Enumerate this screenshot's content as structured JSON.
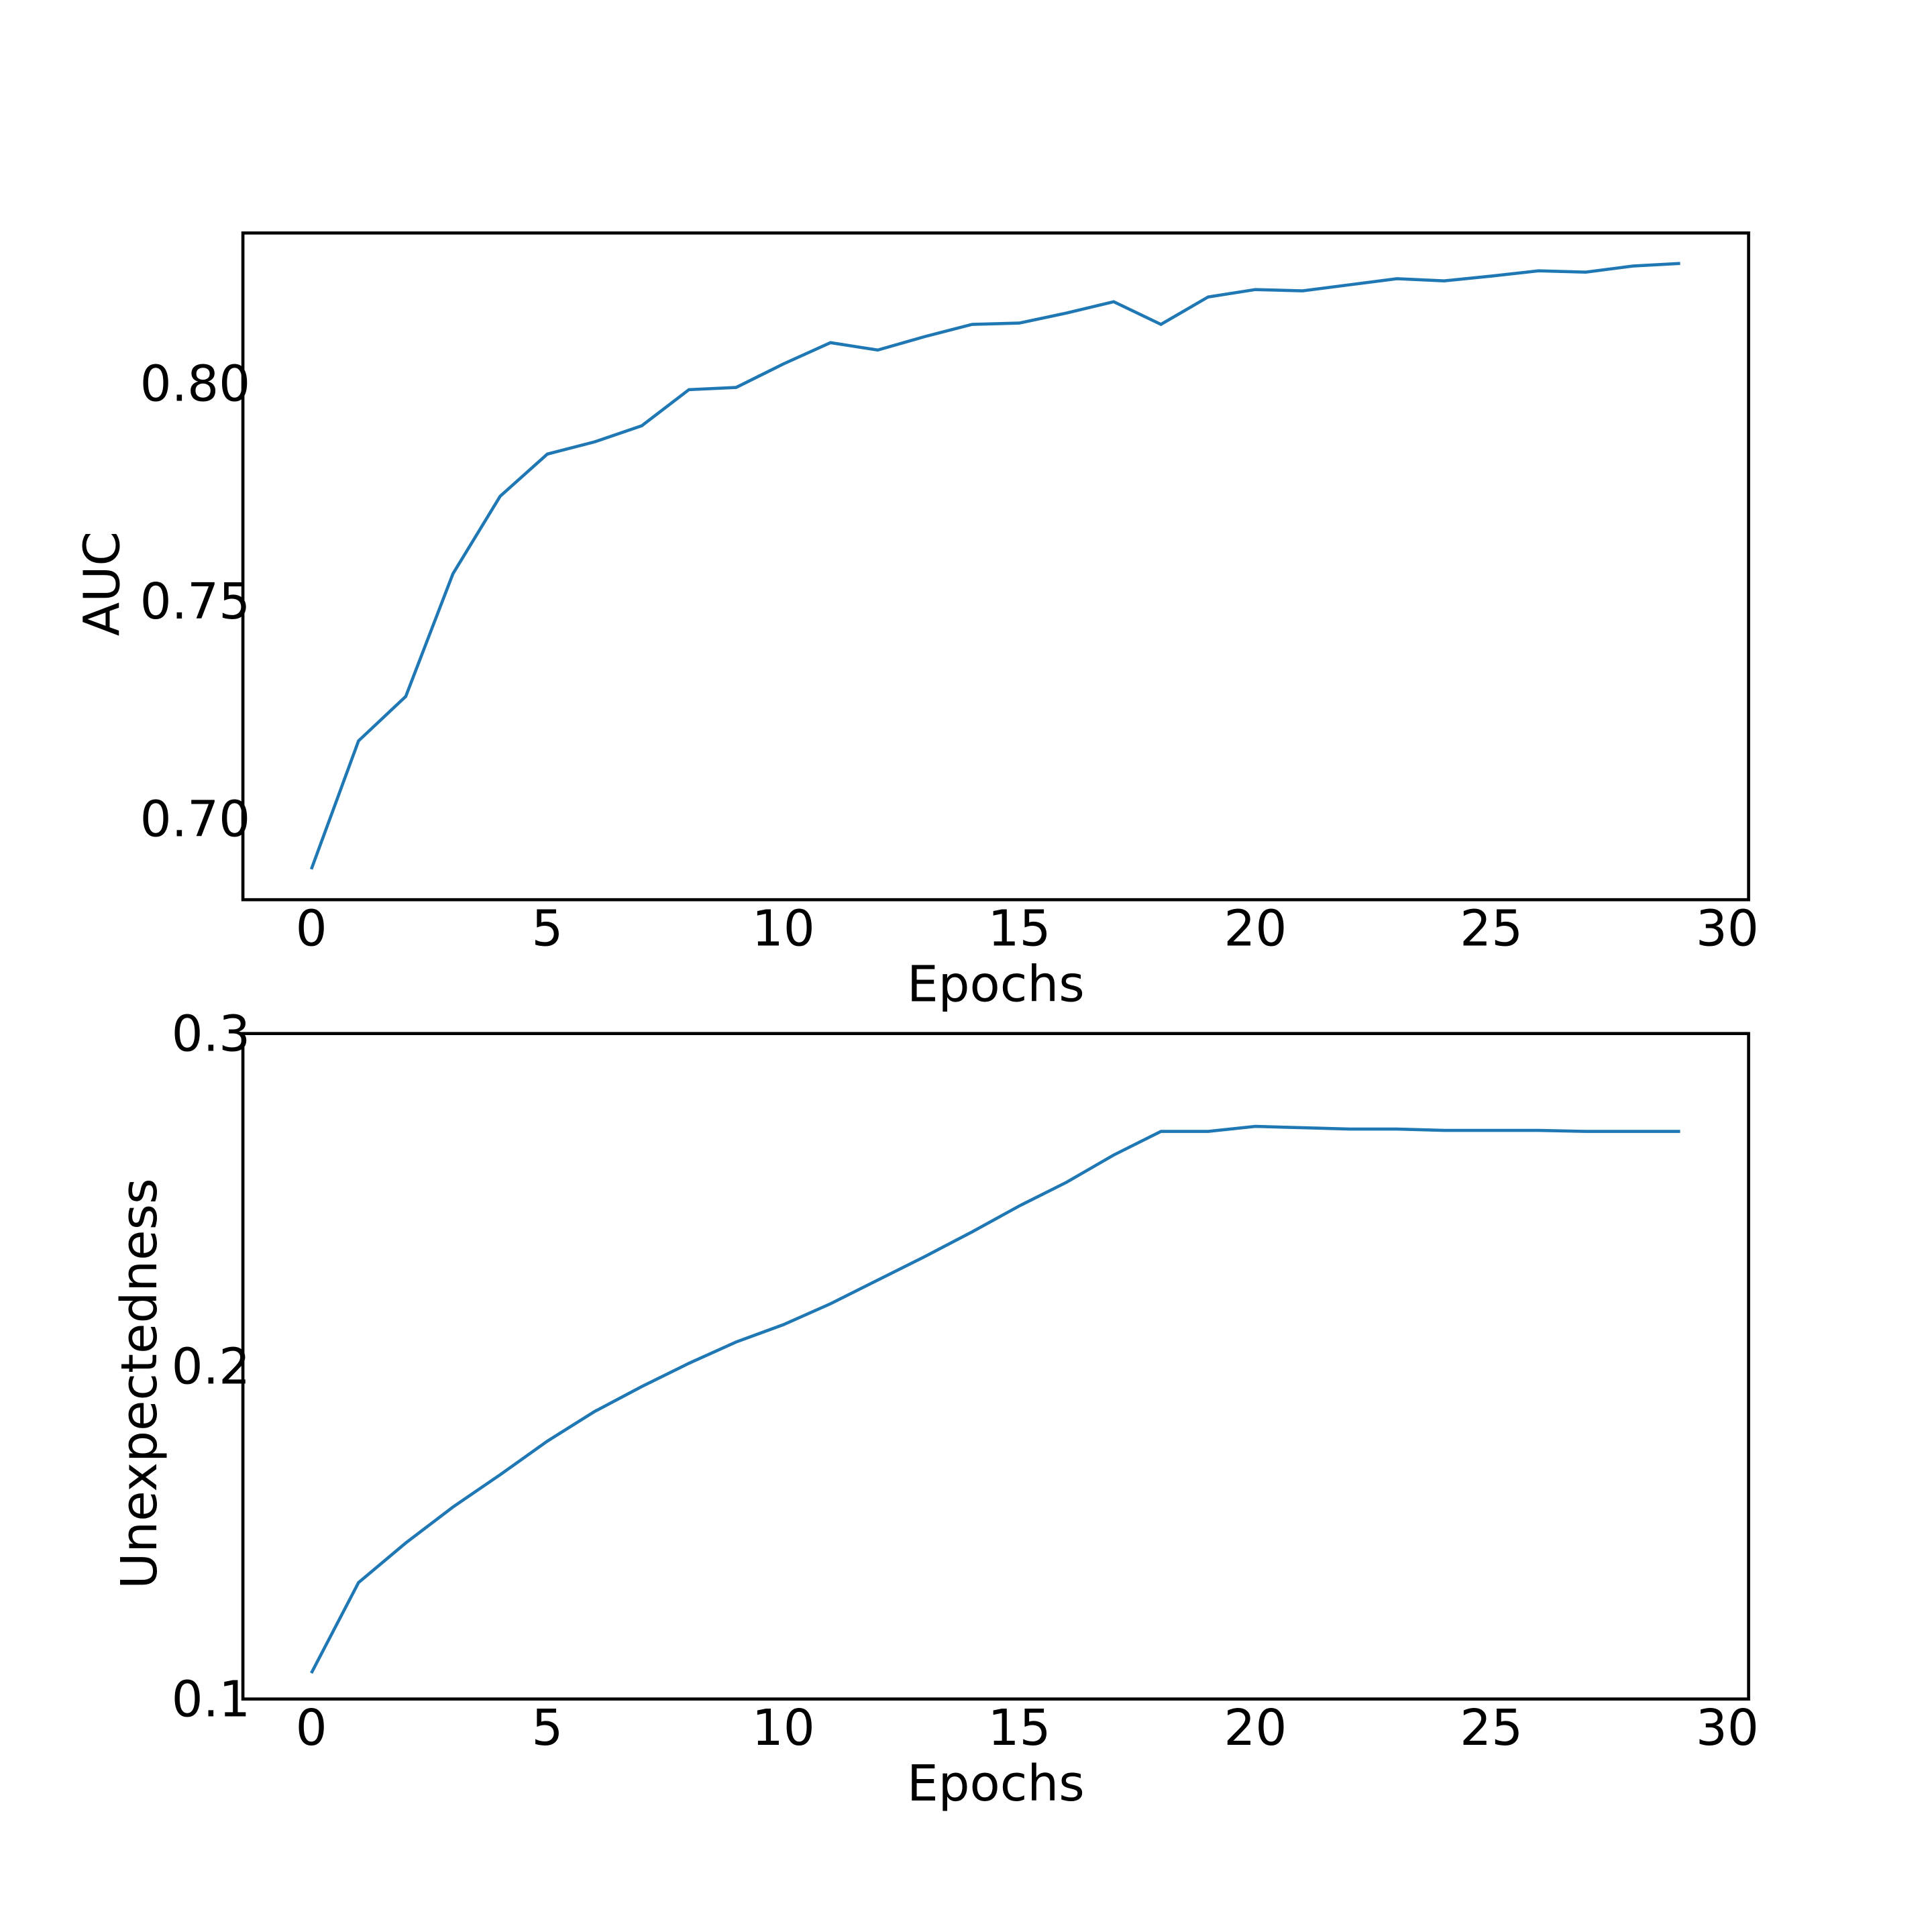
{
  "chart_data": [
    {
      "type": "line",
      "xlabel": "Epochs",
      "ylabel": "AUC",
      "color": "#1f77b4",
      "x": [
        0,
        1,
        2,
        3,
        4,
        5,
        6,
        7,
        8,
        9,
        10,
        11,
        12,
        13,
        14,
        15,
        16,
        17,
        18,
        19,
        20,
        21,
        22,
        23,
        24,
        25,
        26,
        27,
        28,
        29
      ],
      "values": [
        0.6884,
        0.7179,
        0.7281,
        0.7563,
        0.7741,
        0.7838,
        0.7866,
        0.7903,
        0.7986,
        0.7991,
        0.8045,
        0.8094,
        0.8077,
        0.8108,
        0.8136,
        0.8139,
        0.8162,
        0.8188,
        0.8136,
        0.8199,
        0.8216,
        0.8213,
        0.8227,
        0.8241,
        0.8236,
        0.8247,
        0.8259,
        0.8256,
        0.827,
        0.8276
      ],
      "xlim": [
        -1.45,
        30.45
      ],
      "xticks": [
        0,
        5,
        10,
        15,
        20,
        25,
        30
      ],
      "ylim": [
        0.6814,
        0.8346
      ],
      "yticks": [
        {
          "value": 0.7,
          "label": "0.70"
        },
        {
          "value": 0.75,
          "label": "0.75"
        },
        {
          "value": 0.8,
          "label": "0.80"
        }
      ]
    },
    {
      "type": "line",
      "xlabel": "Epochs",
      "ylabel": "Unexpectedness",
      "color": "#1f77b4",
      "x": [
        0,
        1,
        2,
        3,
        4,
        5,
        6,
        7,
        8,
        9,
        10,
        11,
        12,
        13,
        14,
        15,
        16,
        17,
        18,
        19,
        20,
        21,
        22,
        23,
        24,
        25,
        26,
        27,
        28,
        29
      ],
      "values": [
        0.1078,
        0.135,
        0.1469,
        0.1577,
        0.1674,
        0.1775,
        0.1864,
        0.1939,
        0.2009,
        0.2073,
        0.2125,
        0.2188,
        0.2259,
        0.233,
        0.2404,
        0.2482,
        0.2553,
        0.2635,
        0.2706,
        0.2706,
        0.2721,
        0.2717,
        0.2713,
        0.2713,
        0.2709,
        0.2709,
        0.2709,
        0.2706,
        0.2706,
        0.2706
      ],
      "xlim": [
        -1.45,
        30.45
      ],
      "xticks": [
        0,
        5,
        10,
        15,
        20,
        25,
        30
      ],
      "ylim": [
        0.1,
        0.3
      ],
      "yticks": [
        0.1,
        0.2,
        0.3
      ]
    }
  ]
}
